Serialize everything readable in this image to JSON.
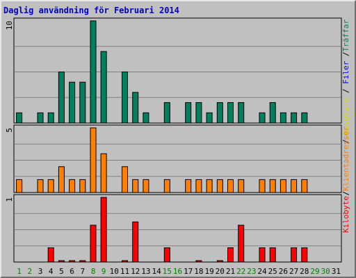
{
  "title": "Daglig användning för Februari 2014",
  "colors": {
    "background": "#c0c0c0",
    "title": "#0000c8",
    "traffar": "#00805f",
    "filer": "#0000ff",
    "besokare": "#d8d800",
    "klientadresser": "#ff8000",
    "kilobyte": "#ff0000",
    "weekend": "#008000",
    "weekday": "#000000"
  },
  "chart_data": [
    {
      "type": "bar",
      "name": "top",
      "ymax_label": "10",
      "ylim": [
        0,
        10
      ],
      "grid": true,
      "legend_labels": [
        "Träffar",
        "/",
        "Filer",
        "/",
        "Besökare",
        "/"
      ],
      "series": [
        {
          "name": "Träffar",
          "color": "#00805f",
          "values": [
            1,
            0,
            1,
            1,
            5,
            4,
            4,
            10,
            7,
            0,
            5,
            3,
            1,
            0,
            2,
            0,
            2,
            2,
            1,
            2,
            2,
            2,
            0,
            1,
            2,
            1,
            1,
            1,
            0,
            0,
            0
          ]
        }
      ]
    },
    {
      "type": "bar",
      "name": "middle",
      "ymax_label": "5",
      "ylim": [
        0,
        5
      ],
      "grid": true,
      "legend_labels": [
        "Klientadresser",
        "/"
      ],
      "series": [
        {
          "name": "Klientadresser",
          "color": "#ff8000",
          "values": [
            1,
            0,
            1,
            1,
            2,
            1,
            1,
            5,
            3,
            0,
            2,
            1,
            1,
            0,
            1,
            0,
            1,
            1,
            1,
            1,
            1,
            1,
            0,
            1,
            1,
            1,
            1,
            1,
            0,
            0,
            0
          ]
        }
      ]
    },
    {
      "type": "bar",
      "name": "bottom",
      "ymax_label": "1",
      "ylim": [
        0,
        1
      ],
      "grid": true,
      "legend_labels": [
        "Kilobyte"
      ],
      "series": [
        {
          "name": "Kilobyte",
          "color": "#ff0000",
          "values": [
            0,
            0,
            0,
            0.22,
            0.02,
            0.02,
            0.02,
            0.57,
            1,
            0,
            0.02,
            0.62,
            0,
            0,
            0.22,
            0,
            0,
            0.02,
            0,
            0.02,
            0.22,
            0.57,
            0,
            0.22,
            0.22,
            0,
            0.22,
            0.22,
            0,
            0,
            0
          ]
        }
      ]
    }
  ],
  "x_labels": [
    "1",
    "2",
    "3",
    "4",
    "5",
    "6",
    "7",
    "8",
    "9",
    "10",
    "11",
    "12",
    "13",
    "14",
    "15",
    "16",
    "17",
    "18",
    "19",
    "20",
    "21",
    "22",
    "23",
    "24",
    "25",
    "26",
    "27",
    "28",
    "29",
    "30",
    "31"
  ],
  "weekend_days": [
    1,
    2,
    8,
    9,
    15,
    16,
    22,
    23,
    29,
    30
  ]
}
